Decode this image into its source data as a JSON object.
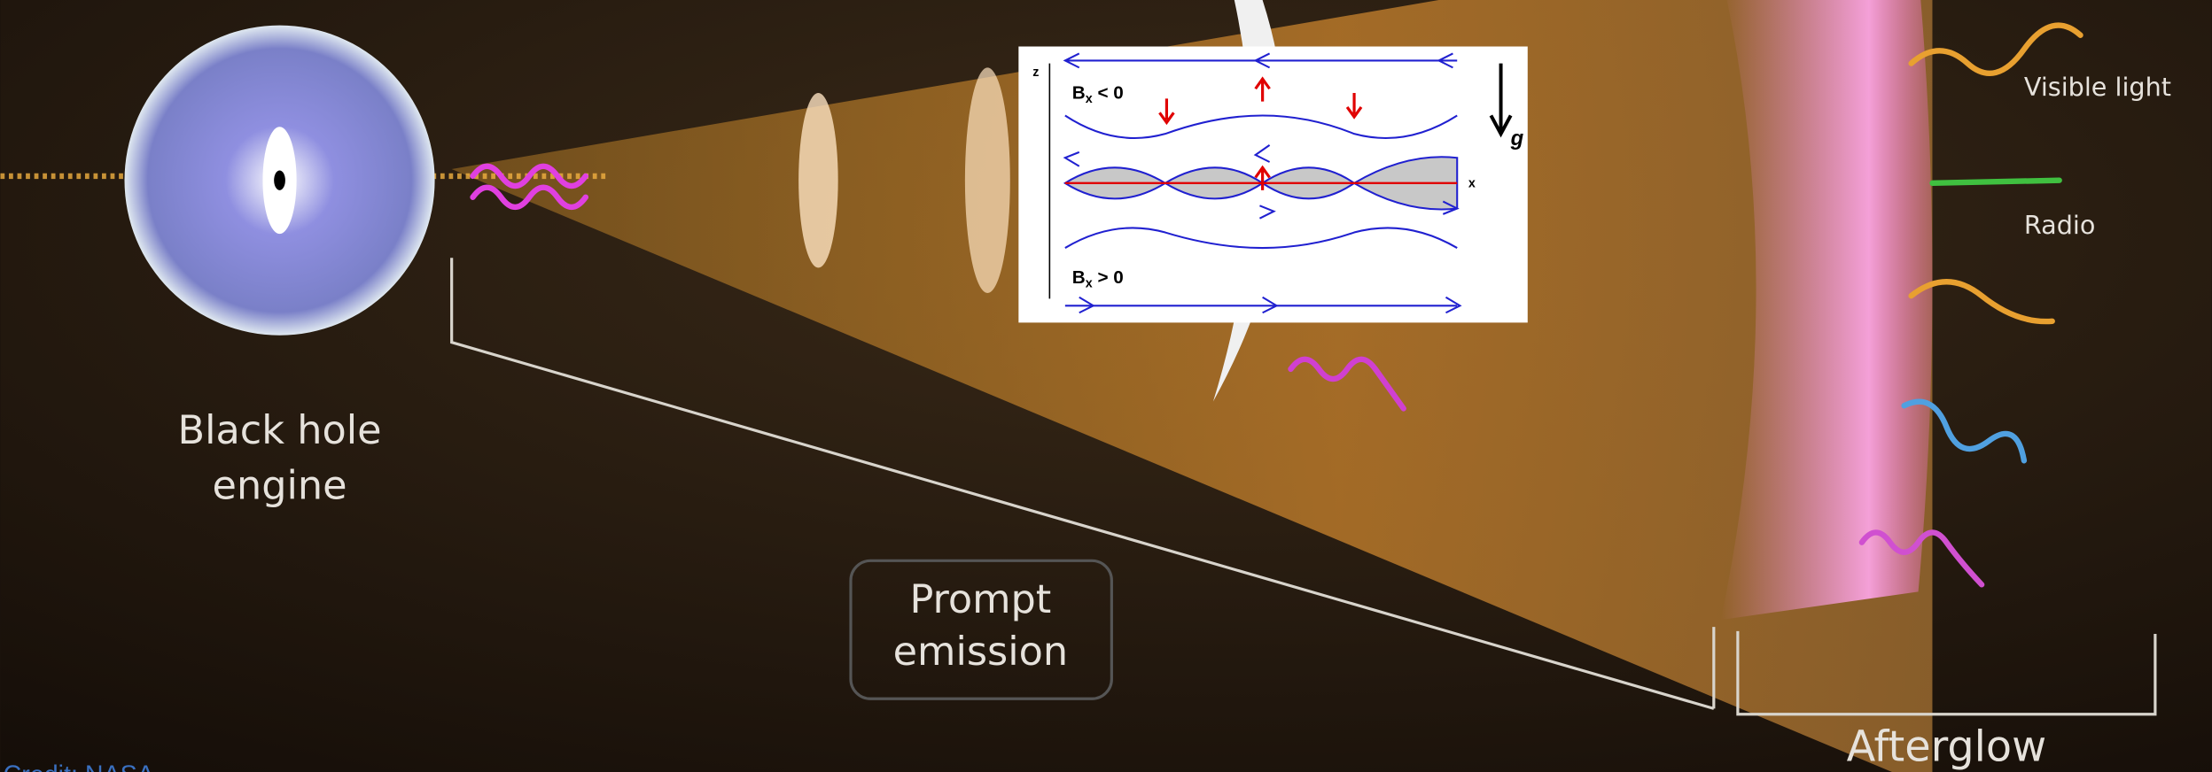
{
  "labels": {
    "engine": [
      "Black hole",
      "engine"
    ],
    "prompt": [
      "Prompt",
      "emission"
    ],
    "afterglow": "Afterglow",
    "visible": "Visible light",
    "radio": "Radio",
    "credit": "Credit: NASA"
  },
  "inset": {
    "z": "z",
    "x": "x",
    "g": "g",
    "top": {
      "main": "B",
      "sub": "x",
      "rest": " < 0"
    },
    "bottom": {
      "main": "B",
      "sub": "x",
      "rest": " > 0"
    }
  }
}
